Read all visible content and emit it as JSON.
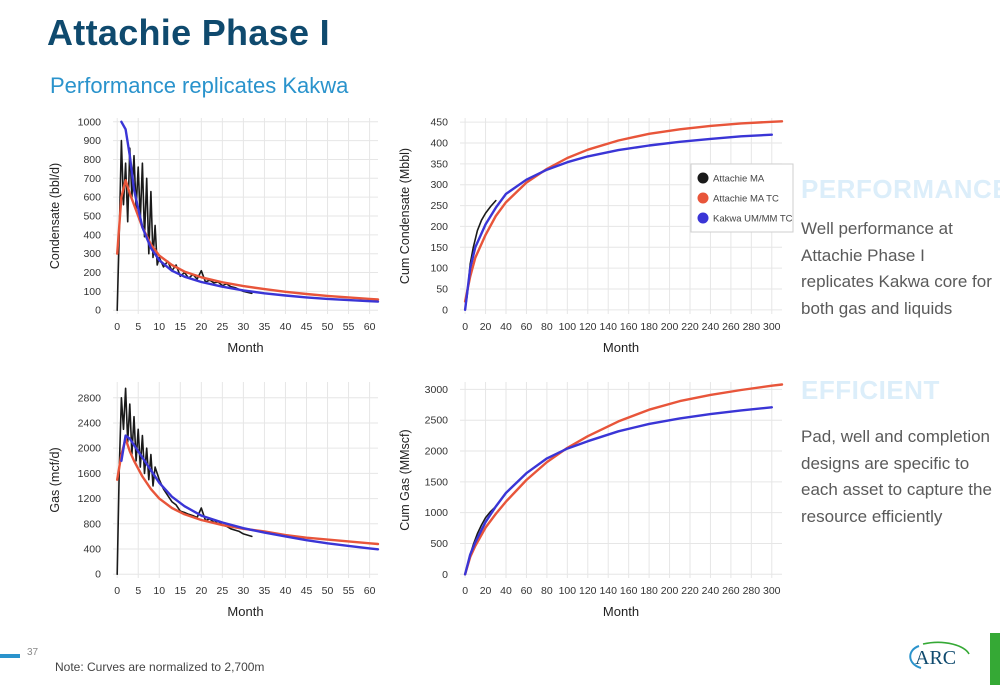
{
  "header": {
    "title": "Attachie Phase I",
    "subtitle": "Performance replicates Kakwa"
  },
  "side": {
    "performance_heading": "PERFORMANCE",
    "performance_text": "Well performance at Attachie Phase I replicates Kakwa core for both gas and liquids",
    "efficient_heading": "EFFICIENT",
    "efficient_text": "Pad, well and completion designs are specific to each asset to capture the resource efficiently"
  },
  "footer": {
    "page_number": "37",
    "note": "Note: Curves are normalized to 2,700m",
    "logo_text": "ARC"
  },
  "colors": {
    "title": "#0f4a6e",
    "subtitle": "#2a93cc",
    "actual": "#1a1a1a",
    "type_curve": "#e8553a",
    "kakwa": "#3a35d6",
    "grid": "#e6e6e6",
    "side_heading": "#dceefa",
    "green_bar": "#35a935"
  },
  "chart_data": [
    {
      "id": "cond_rate",
      "type": "line",
      "xlabel": "Month",
      "ylabel": "Condensate (bbl/d)",
      "xlim": [
        -1,
        62
      ],
      "ylim": [
        -20,
        1020
      ],
      "xticks": [
        0,
        5,
        10,
        15,
        20,
        25,
        30,
        35,
        40,
        45,
        50,
        55,
        60
      ],
      "yticks": [
        0,
        100,
        200,
        300,
        400,
        500,
        600,
        700,
        800,
        900,
        1000
      ],
      "series": [
        {
          "name": "Attachie MA",
          "style": "actual",
          "x": [
            0,
            0.5,
            1,
            1.5,
            2,
            2.5,
            3,
            3.5,
            4,
            4.5,
            5,
            5.5,
            6,
            6.5,
            7,
            7.5,
            8,
            8.5,
            9,
            9.5,
            10,
            11,
            12,
            13,
            14,
            15,
            16,
            17,
            18,
            19,
            20,
            21,
            22,
            23,
            24,
            25,
            26,
            27,
            28,
            29,
            30,
            31,
            32
          ],
          "y": [
            0,
            420,
            900,
            560,
            780,
            470,
            860,
            600,
            820,
            540,
            760,
            480,
            780,
            390,
            700,
            300,
            630,
            280,
            450,
            240,
            280,
            230,
            260,
            210,
            240,
            180,
            200,
            170,
            190,
            165,
            210,
            150,
            160,
            145,
            150,
            130,
            140,
            125,
            120,
            110,
            100,
            95,
            90
          ]
        },
        {
          "name": "Attachie MA TC",
          "style": "tc",
          "x": [
            0,
            1,
            2,
            3,
            4,
            6,
            8,
            10,
            13,
            16,
            20,
            25,
            30,
            35,
            40,
            45,
            50,
            55,
            60,
            62
          ],
          "y": [
            300,
            600,
            690,
            620,
            560,
            440,
            350,
            290,
            240,
            205,
            175,
            148,
            128,
            112,
            98,
            86,
            76,
            68,
            60,
            57
          ]
        },
        {
          "name": "Kakwa UM/MM TC",
          "style": "kakwa",
          "x": [
            1,
            2,
            3,
            4,
            6,
            8,
            10,
            13,
            16,
            20,
            25,
            30,
            35,
            40,
            45,
            50,
            55,
            60,
            62
          ],
          "y": [
            1000,
            960,
            820,
            640,
            440,
            330,
            265,
            210,
            178,
            150,
            125,
            105,
            90,
            78,
            68,
            60,
            54,
            48,
            46
          ]
        }
      ]
    },
    {
      "id": "cum_cond",
      "type": "line",
      "xlabel": "",
      "ylabel": "Cum Condensate (Mbbl)",
      "xlim": [
        -5,
        310
      ],
      "ylim": [
        -10,
        460
      ],
      "xticks": [
        0,
        20,
        40,
        60,
        80,
        100,
        120,
        140,
        160,
        180,
        200,
        220,
        240,
        260,
        280,
        300
      ],
      "yticks": [
        0,
        50,
        100,
        150,
        200,
        250,
        300,
        350,
        400,
        450
      ],
      "legend": {
        "placement": "right",
        "entries": [
          {
            "name": "Attachie MA",
            "color": "#1a1a1a"
          },
          {
            "name": "Attachie MA TC",
            "color": "#e8553a"
          },
          {
            "name": "Kakwa UM/MM TC",
            "color": "#3a35d6"
          }
        ]
      },
      "series": [
        {
          "name": "Attachie MA",
          "style": "actual",
          "x": [
            0,
            2,
            5,
            8,
            12,
            16,
            20,
            25,
            30
          ],
          "y": [
            0,
            35,
            110,
            150,
            190,
            215,
            232,
            248,
            262
          ]
        },
        {
          "name": "Attachie MA TC",
          "style": "tc",
          "x": [
            0,
            5,
            10,
            20,
            30,
            40,
            60,
            80,
            100,
            120,
            150,
            180,
            210,
            240,
            270,
            300,
            310
          ],
          "y": [
            20,
            80,
            125,
            180,
            225,
            258,
            305,
            338,
            364,
            384,
            406,
            422,
            433,
            441,
            447,
            451,
            452
          ]
        },
        {
          "name": "Kakwa UM/MM TC",
          "style": "kakwa",
          "x": [
            0,
            5,
            10,
            20,
            30,
            40,
            60,
            80,
            100,
            120,
            150,
            180,
            210,
            240,
            270,
            300
          ],
          "y": [
            0,
            100,
            150,
            205,
            245,
            278,
            312,
            336,
            354,
            368,
            383,
            394,
            403,
            410,
            416,
            420
          ]
        }
      ]
    },
    {
      "id": "gas_rate",
      "type": "line",
      "xlabel": "Month",
      "ylabel": "Gas (mcf/d)",
      "xlim": [
        -1,
        62
      ],
      "ylim": [
        -60,
        3050
      ],
      "xticks": [
        0,
        5,
        10,
        15,
        20,
        25,
        30,
        35,
        40,
        45,
        50,
        55,
        60
      ],
      "yticks": [
        0,
        400,
        800,
        1200,
        1600,
        2000,
        2400,
        2800
      ],
      "series": [
        {
          "name": "Attachie MA",
          "style": "actual",
          "x": [
            0,
            0.5,
            1,
            1.5,
            2,
            2.5,
            3,
            3.5,
            4,
            4.5,
            5,
            5.5,
            6,
            6.5,
            7,
            7.5,
            8,
            8.5,
            9,
            10,
            11,
            12,
            13,
            14,
            15,
            16,
            17,
            18,
            19,
            20,
            21,
            22,
            23,
            24,
            25,
            26,
            27,
            28,
            29,
            30,
            31,
            32
          ],
          "y": [
            0,
            1700,
            2800,
            2300,
            2950,
            2100,
            2700,
            1900,
            2500,
            1800,
            2300,
            1700,
            2200,
            1600,
            2000,
            1500,
            1900,
            1400,
            1700,
            1500,
            1350,
            1250,
            1150,
            1100,
            1000,
            980,
            950,
            930,
            900,
            1050,
            850,
            880,
            820,
            840,
            780,
            760,
            720,
            700,
            680,
            640,
            620,
            600
          ]
        },
        {
          "name": "Attachie MA TC",
          "style": "tc",
          "x": [
            0,
            1,
            2,
            3,
            4,
            6,
            8,
            10,
            13,
            16,
            20,
            25,
            30,
            35,
            40,
            45,
            50,
            55,
            60,
            62
          ],
          "y": [
            1500,
            1900,
            2150,
            1950,
            1800,
            1550,
            1350,
            1200,
            1050,
            950,
            860,
            780,
            720,
            680,
            620,
            580,
            550,
            520,
            490,
            480
          ]
        },
        {
          "name": "Kakwa UM/MM TC",
          "style": "kakwa",
          "x": [
            1,
            2,
            3,
            4,
            6,
            8,
            10,
            13,
            16,
            20,
            25,
            30,
            35,
            40,
            45,
            50,
            55,
            60,
            62
          ],
          "y": [
            1800,
            2200,
            2150,
            2050,
            1850,
            1650,
            1450,
            1230,
            1080,
            930,
            820,
            730,
            660,
            600,
            540,
            490,
            450,
            410,
            395
          ]
        }
      ]
    },
    {
      "id": "cum_gas",
      "type": "line",
      "xlabel": "Month",
      "ylabel": "Cum Gas (MMscf)",
      "xlim": [
        -5,
        310
      ],
      "ylim": [
        -60,
        3120
      ],
      "xticks": [
        0,
        20,
        40,
        60,
        80,
        100,
        120,
        140,
        160,
        180,
        200,
        220,
        240,
        260,
        280,
        300
      ],
      "yticks": [
        0,
        500,
        1000,
        1500,
        2000,
        2500,
        3000
      ],
      "series": [
        {
          "name": "Attachie MA",
          "style": "actual",
          "x": [
            0,
            2,
            5,
            8,
            12,
            16,
            20,
            25,
            30
          ],
          "y": [
            0,
            120,
            320,
            480,
            660,
            800,
            920,
            1020,
            1100
          ]
        },
        {
          "name": "Attachie MA TC",
          "style": "tc",
          "x": [
            0,
            5,
            10,
            20,
            30,
            40,
            60,
            80,
            100,
            120,
            150,
            180,
            210,
            240,
            270,
            300,
            310
          ],
          "y": [
            0,
            280,
            460,
            760,
            980,
            1180,
            1530,
            1820,
            2050,
            2240,
            2480,
            2670,
            2810,
            2910,
            2990,
            3060,
            3080
          ]
        },
        {
          "name": "Kakwa UM/MM TC",
          "style": "kakwa",
          "x": [
            0,
            5,
            10,
            20,
            30,
            40,
            60,
            80,
            100,
            120,
            150,
            180,
            210,
            240,
            270,
            300
          ],
          "y": [
            0,
            320,
            520,
            850,
            1100,
            1320,
            1640,
            1880,
            2040,
            2160,
            2320,
            2440,
            2530,
            2600,
            2660,
            2710
          ]
        }
      ]
    }
  ]
}
